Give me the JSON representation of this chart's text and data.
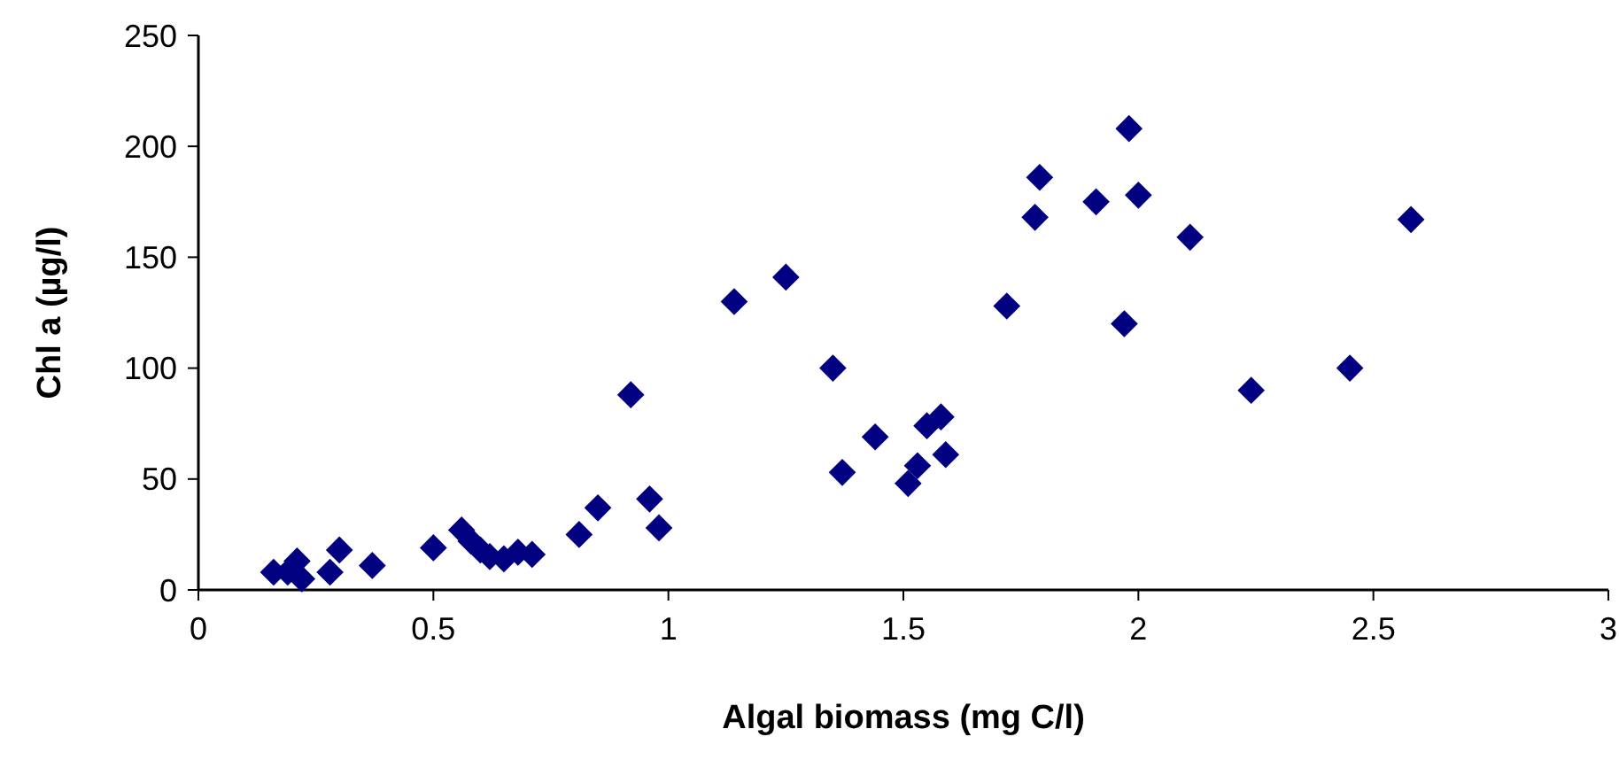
{
  "chart_data": {
    "type": "scatter",
    "xlabel": "Algal biomass (mg C/l)",
    "ylabel": "Chl a (µg/l)",
    "x": [
      0.16,
      0.19,
      0.21,
      0.22,
      0.28,
      0.3,
      0.37,
      0.5,
      0.56,
      0.58,
      0.6,
      0.62,
      0.65,
      0.68,
      0.71,
      0.81,
      0.85,
      0.92,
      0.96,
      0.98,
      1.14,
      1.25,
      1.35,
      1.37,
      1.44,
      1.51,
      1.53,
      1.55,
      1.58,
      1.59,
      1.72,
      1.78,
      1.79,
      1.91,
      1.97,
      1.98,
      2.0,
      2.11,
      2.24,
      2.45,
      2.58
    ],
    "values": [
      8,
      8,
      13,
      5,
      8,
      18,
      11,
      19,
      27,
      22,
      18,
      15,
      14,
      17,
      16,
      25,
      37,
      88,
      41,
      28,
      130,
      141,
      100,
      53,
      69,
      48,
      56,
      74,
      78,
      61,
      128,
      168,
      186,
      175,
      120,
      208,
      178,
      159,
      90,
      100,
      167
    ],
    "color": "#000080",
    "marker": "diamond",
    "xlim": [
      0,
      3
    ],
    "ylim": [
      0,
      250
    ],
    "xticks": [
      0,
      0.5,
      1,
      1.5,
      2,
      2.5,
      3
    ],
    "yticks": [
      0,
      50,
      100,
      150,
      200,
      250
    ],
    "grid": false
  }
}
